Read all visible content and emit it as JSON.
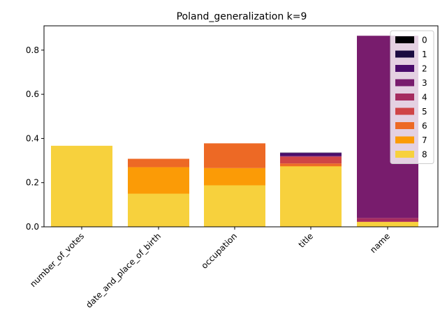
{
  "chart_data": {
    "type": "bar",
    "stacked": true,
    "title": "Poland_generalization k=9",
    "xlabel": "",
    "ylabel": "",
    "categories": [
      "number_of_votes",
      "date_and_place_of_birth",
      "occupation",
      "title",
      "name"
    ],
    "ylim": [
      0,
      0.91
    ],
    "yticks": [
      "0.0",
      "0.2",
      "0.4",
      "0.6",
      "0.8"
    ],
    "yticks_values": [
      0.0,
      0.2,
      0.4,
      0.6,
      0.8
    ],
    "legend_position": "top-right",
    "grid": false,
    "stack_order": [
      "8",
      "7",
      "6",
      "5",
      "4",
      "3",
      "2",
      "1",
      "0"
    ],
    "series": [
      {
        "name": "0",
        "color": "#000004",
        "values": [
          0,
          0,
          0,
          0,
          0
        ]
      },
      {
        "name": "1",
        "color": "#1b0c41",
        "values": [
          0,
          0,
          0,
          0.002,
          0
        ]
      },
      {
        "name": "2",
        "color": "#4a0c6b",
        "values": [
          0,
          0,
          0,
          0.014,
          0
        ]
      },
      {
        "name": "3",
        "color": "#781c6d",
        "values": [
          0,
          0,
          0,
          0,
          0.825
        ]
      },
      {
        "name": "4",
        "color": "#a52c60",
        "values": [
          0,
          0,
          0,
          0.003,
          0.016
        ]
      },
      {
        "name": "5",
        "color": "#cf4446",
        "values": [
          0,
          0,
          0,
          0.03,
          0.002
        ]
      },
      {
        "name": "6",
        "color": "#ed6925",
        "values": [
          0,
          0.038,
          0.112,
          0.012,
          0
        ]
      },
      {
        "name": "7",
        "color": "#fb9b06",
        "values": [
          0,
          0.12,
          0.078,
          0.002,
          0
        ]
      },
      {
        "name": "8",
        "color": "#f7d13d",
        "values": [
          0.367,
          0.15,
          0.188,
          0.273,
          0.022
        ]
      }
    ]
  }
}
